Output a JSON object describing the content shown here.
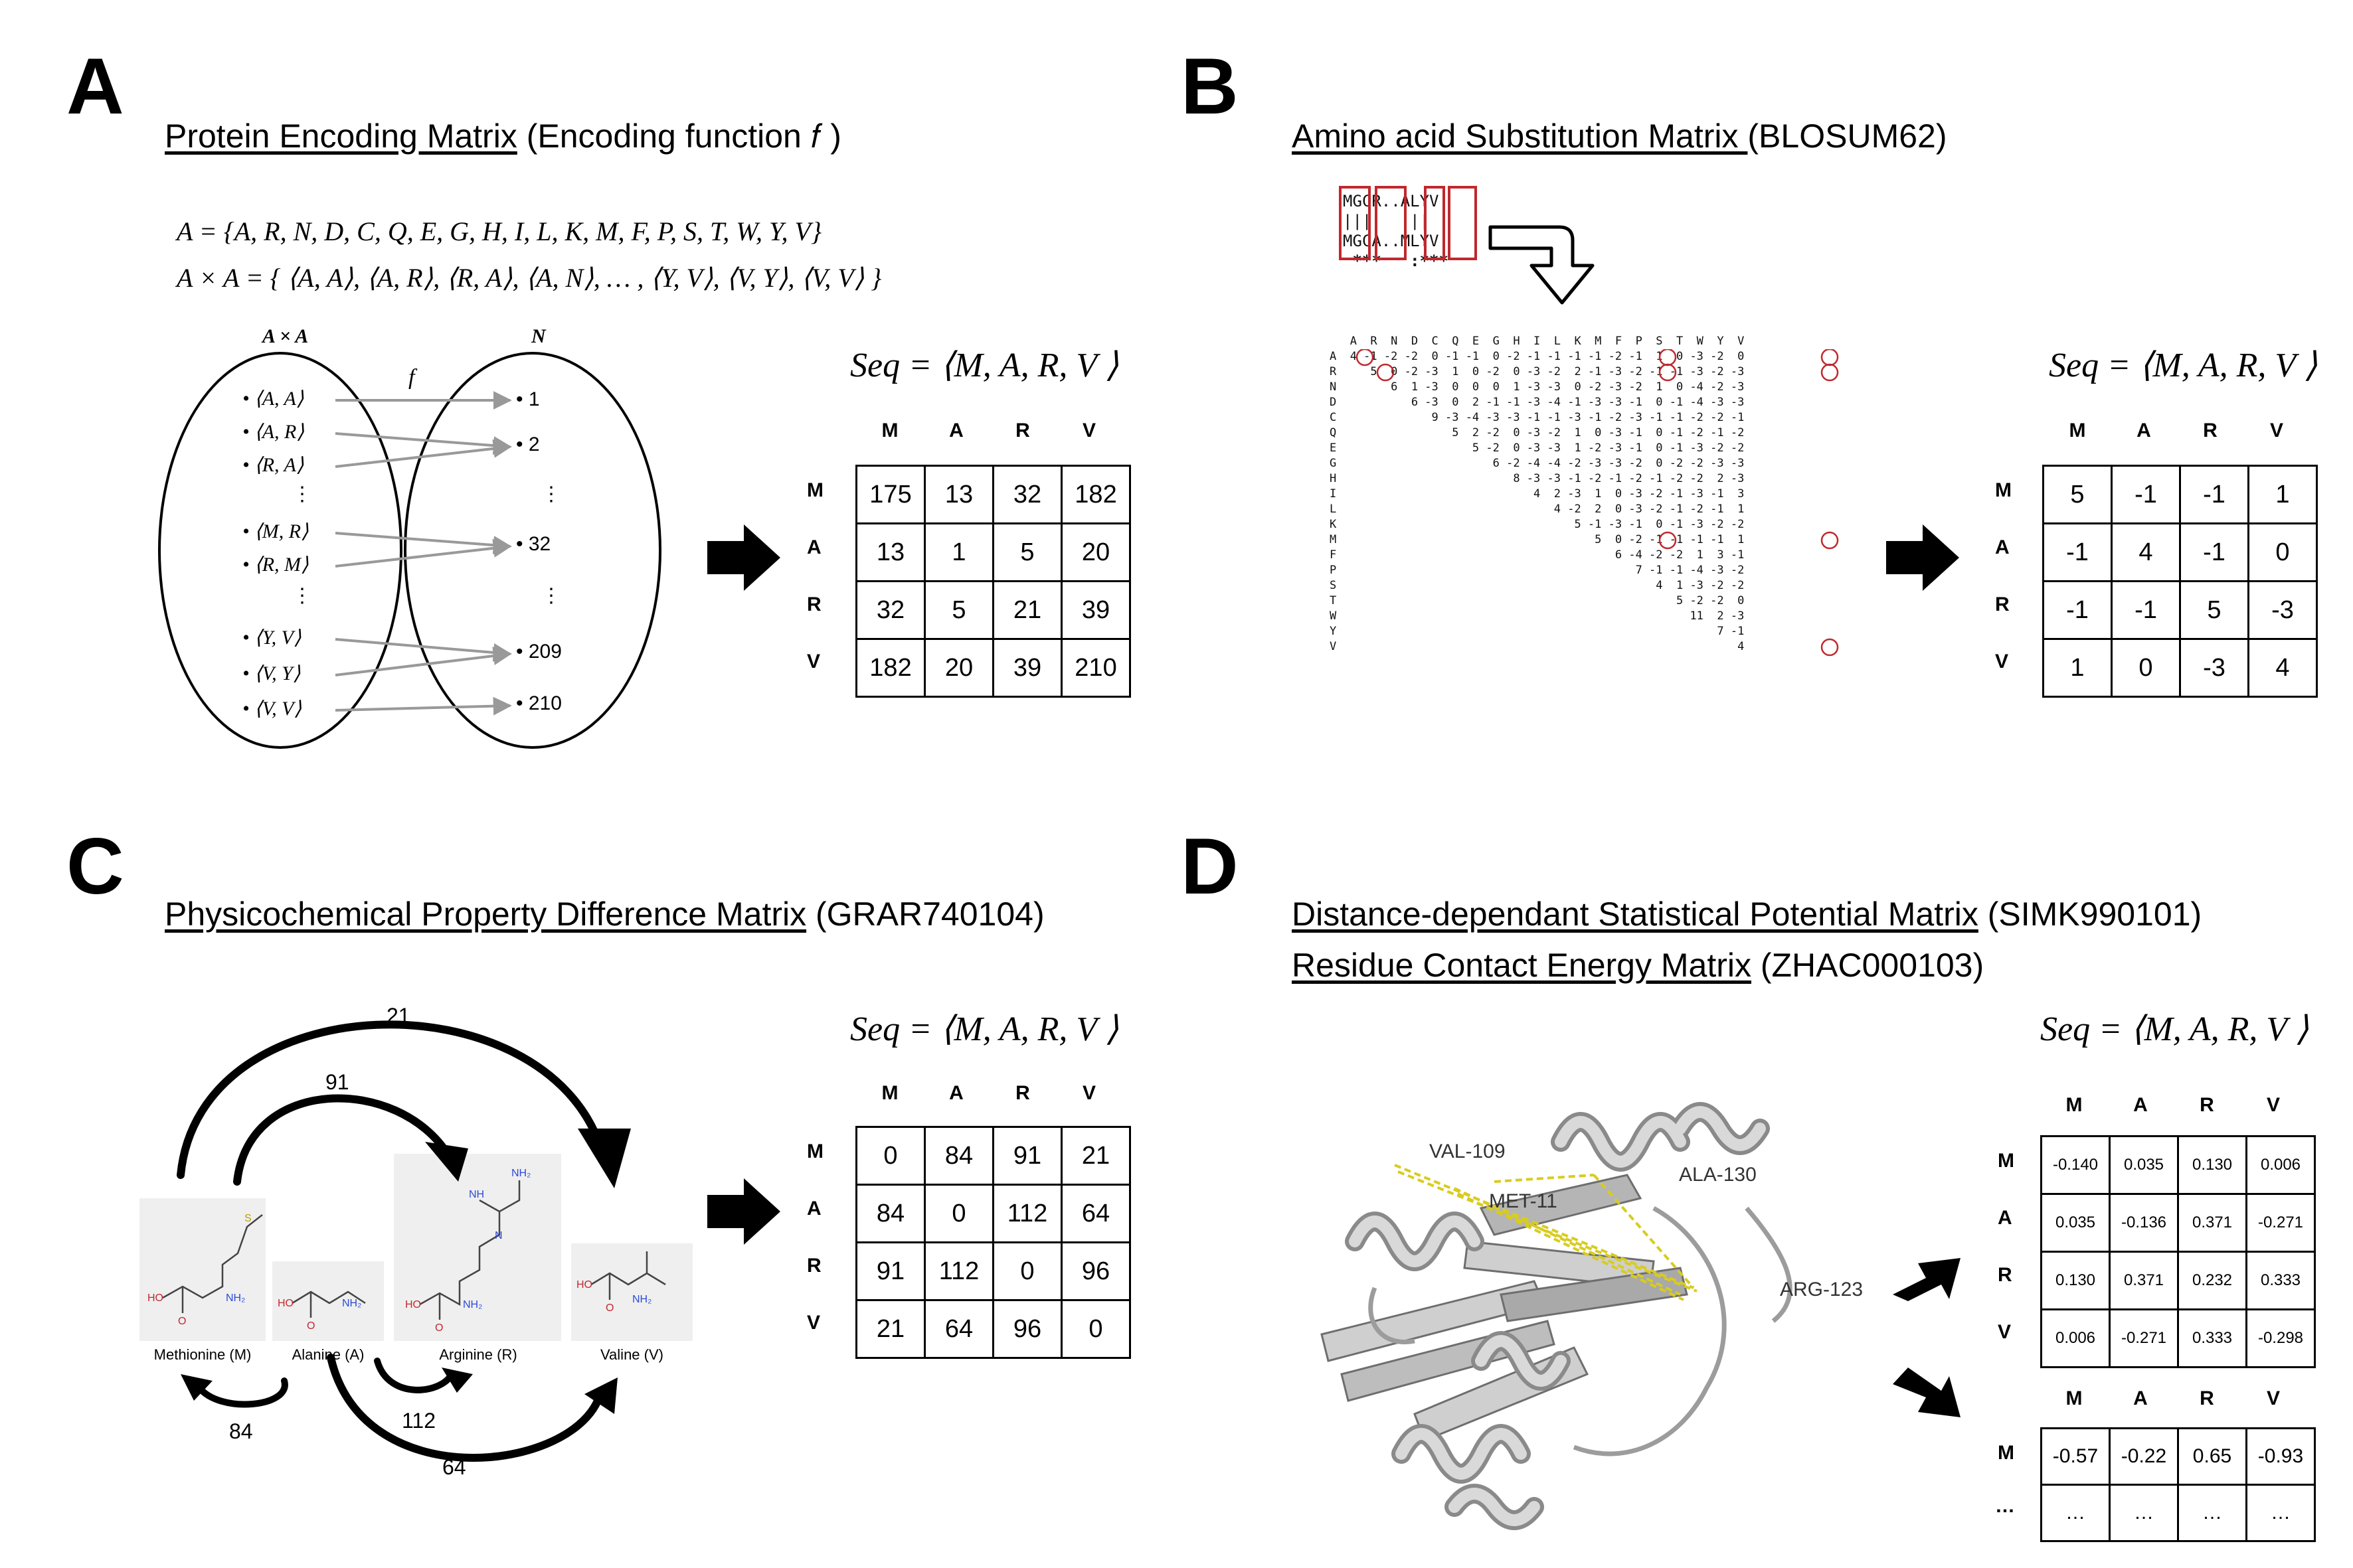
{
  "panels": {
    "A": {
      "letter": "A",
      "title_u": "Protein Encoding Matrix",
      "title_rest": " (Encoding function 𝑓 )",
      "set_A": "A  = {A, R, N, D, C, Q, E, G, H, I, L, K, M, F, P, S, T, W, Y, V}",
      "set_AxA": "A × A  = { ⟨A, A⟩, ⟨A, R⟩, ⟨R, A⟩, ⟨A, N⟩, … , ⟨Y, V⟩, ⟨V, Y⟩, ⟨V, V⟩ }",
      "left_label": "A × A",
      "right_label": "N",
      "f_label": "f",
      "left_items": [
        "•  ⟨A, A⟩",
        "•  ⟨A, R⟩",
        "•  ⟨R, A⟩",
        "⋮",
        "•  ⟨M, R⟩",
        "•  ⟨R, M⟩",
        "⋮",
        "•  ⟨Y, V⟩",
        "•  ⟨V, Y⟩",
        "•  ⟨V, V⟩"
      ],
      "right_items": [
        "•  1",
        "•  2",
        "⋮",
        "•  32",
        "⋮",
        "•  209",
        "•  210"
      ],
      "seq": "Seq = ⟨M, A, R, V ⟩",
      "headers": [
        "M",
        "A",
        "R",
        "V"
      ],
      "rows": [
        [
          "175",
          "13",
          "32",
          "182"
        ],
        [
          "13",
          "1",
          "5",
          "20"
        ],
        [
          "32",
          "5",
          "21",
          "39"
        ],
        [
          "182",
          "20",
          "39",
          "210"
        ]
      ]
    },
    "B": {
      "letter": "B",
      "title_u": "Amino acid Substitution Matrix ",
      "title_rest": "(BLOSUM62)",
      "align_top": "MGCR..ALYV",
      "align_mid": "|||   |||",
      "align_bot": "MGCA..MLYV",
      "align_stars": " ***   :***",
      "blosum_header": "   A  R  N  D  C  Q  E  G  H  I  L  K  M  F  P  S  T  W  Y  V",
      "blosum_rows": [
        "A  4 -1 -2 -2  0 -1 -1  0 -2 -1 -1 -1 -1 -2 -1  1  0 -3 -2  0",
        "R     5  0 -2 -3  1  0 -2  0 -3 -2  2 -1 -3 -2 -1 -1 -3 -2 -3",
        "N        6  1 -3  0  0  0  1 -3 -3  0 -2 -3 -2  1  0 -4 -2 -3",
        "D           6 -3  0  2 -1 -1 -3 -4 -1 -3 -3 -1  0 -1 -4 -3 -3",
        "C              9 -3 -4 -3 -3 -1 -1 -3 -1 -2 -3 -1 -1 -2 -2 -1",
        "Q                 5  2 -2  0 -3 -2  1  0 -3 -1  0 -1 -2 -1 -2",
        "E                    5 -2  0 -3 -3  1 -2 -3 -1  0 -1 -3 -2 -2",
        "G                       6 -2 -4 -4 -2 -3 -3 -2  0 -2 -2 -3 -3",
        "H                          8 -3 -3 -1 -2 -1 -2 -1 -2 -2  2 -3",
        "I                             4  2 -3  1  0 -3 -2 -1 -3 -1  3",
        "L                                4 -2  2  0 -3 -2 -1 -2 -1  1",
        "K                                   5 -1 -3 -1  0 -1 -3 -2 -2",
        "M                                      5  0 -2 -1 -1 -1 -1  1",
        "F                                         6 -4 -2 -2  1  3 -1",
        "P                                            7 -1 -1 -4 -3 -2",
        "S                                               4  1 -3 -2 -2",
        "T                                                  5 -2 -2  0",
        "W                                                    11  2 -3",
        "Y                                                        7 -1",
        "V                                                           4"
      ],
      "seq": "Seq = ⟨M, A, R, V ⟩",
      "headers": [
        "M",
        "A",
        "R",
        "V"
      ],
      "rows": [
        [
          "5",
          "-1",
          "-1",
          "1"
        ],
        [
          "-1",
          "4",
          "-1",
          "0"
        ],
        [
          "-1",
          "-1",
          "5",
          "-3"
        ],
        [
          "1",
          "0",
          "-3",
          "4"
        ]
      ]
    },
    "C": {
      "letter": "C",
      "title_u": "Physicochemical Property Difference Matrix",
      "title_rest": " (GRAR740104)",
      "mol_names": [
        "Methionine (M)",
        "Alanine (A)",
        "Arginine (R)",
        "Valine (V)"
      ],
      "arrow_labels": [
        "21",
        "91",
        "84",
        "112",
        "64"
      ],
      "seq": "Seq = ⟨M, A, R, V ⟩",
      "headers": [
        "M",
        "A",
        "R",
        "V"
      ],
      "rows": [
        [
          "0",
          "84",
          "91",
          "21"
        ],
        [
          "84",
          "0",
          "112",
          "64"
        ],
        [
          "91",
          "112",
          "0",
          "96"
        ],
        [
          "21",
          "64",
          "96",
          "0"
        ]
      ]
    },
    "D": {
      "letter": "D",
      "title1_u": "Distance-dependant Statistical Potential Matrix",
      "title1_rest": " (SIMK990101)",
      "title2_u": "Residue Contact Energy Matrix",
      "title2_rest": " (ZHAC000103)",
      "residues": [
        "VAL-109",
        "MET-11",
        "ALA-130",
        "ARG-123"
      ],
      "seq": "Seq = ⟨M, A, R, V ⟩",
      "headers": [
        "M",
        "A",
        "R",
        "V"
      ],
      "rows1": [
        [
          "-0.140",
          "0.035",
          "0.130",
          "0.006"
        ],
        [
          "0.035",
          "-0.136",
          "0.371",
          "-0.271"
        ],
        [
          "0.130",
          "0.371",
          "0.232",
          "0.333"
        ],
        [
          "0.006",
          "-0.271",
          "0.333",
          "-0.298"
        ]
      ],
      "rows2": [
        [
          "-0.57",
          "-0.22",
          "0.65",
          "-0.93"
        ],
        [
          "…",
          "…",
          "…",
          "…"
        ]
      ],
      "row_labels2": [
        "M",
        "…"
      ]
    }
  }
}
